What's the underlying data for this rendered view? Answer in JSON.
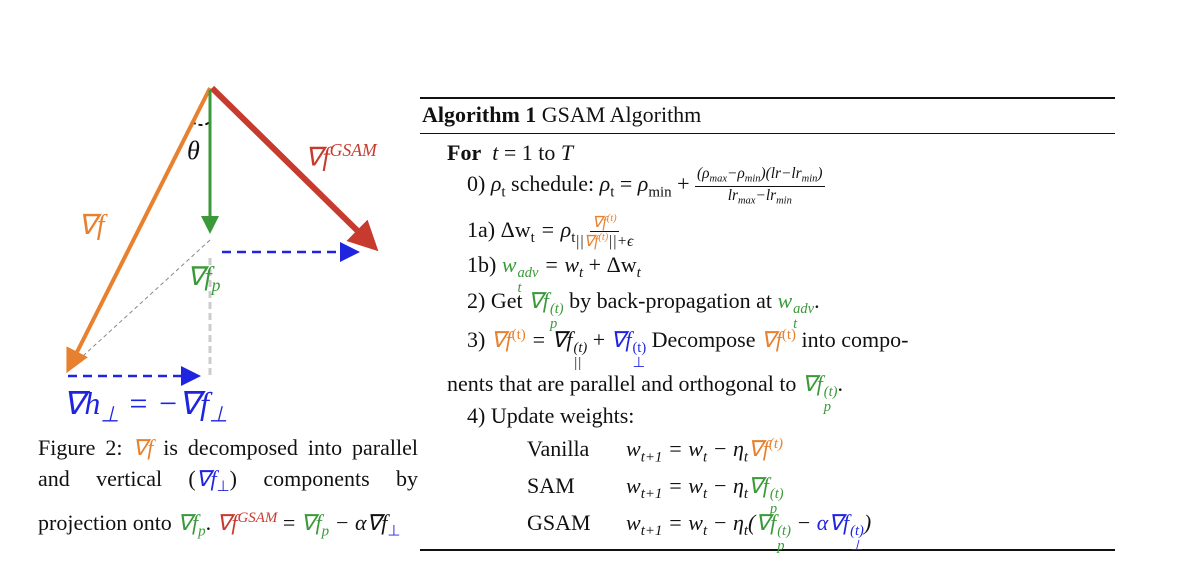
{
  "figure": {
    "grad_f": "∇f",
    "theta": "θ",
    "gsam_base": "∇f",
    "gsam_sup": "GSAM",
    "fp_base": "∇f",
    "fp_sub": "p",
    "h_perp": [
      "∇h",
      "⊥",
      " = −∇f",
      "⊥"
    ]
  },
  "caption": [
    "Figure 2: ",
    "∇f",
    " is decomposed into parallel and vertical (",
    "∇f",
    "⊥",
    ") components by projection onto ",
    "∇f",
    "p",
    ". ",
    "∇f",
    "GSAM",
    " = ",
    "∇f",
    "p",
    " − α∇f",
    "⊥"
  ],
  "algorithm": {
    "label": "Algorithm 1",
    "title": "GSAM Algorithm",
    "for": [
      "For",
      "t",
      " = 1 to ",
      "T"
    ],
    "step0": [
      "0) ",
      "ρ",
      "t",
      " schedule: ",
      "ρ",
      "t",
      " = ",
      "ρ",
      "min",
      " + "
    ],
    "step0_num": [
      "(ρ",
      "max",
      "−ρ",
      "min",
      ")(lr−lr",
      "min",
      ")"
    ],
    "step0_den": [
      "lr",
      "max",
      "−lr",
      "min"
    ],
    "step1a": [
      "1a) Δw",
      "t",
      " = ρ",
      "t"
    ],
    "step1a_num": [
      "∇f",
      "(t)"
    ],
    "step1a_den": [
      "||",
      "∇f",
      "(t)",
      "||+ϵ"
    ],
    "step1b": [
      "1b) ",
      "w",
      "t",
      "adv",
      " = w",
      "t",
      " + Δw",
      "t"
    ],
    "step2": [
      "2) Get ",
      "∇f",
      "p",
      "(t)",
      " by back-propagation at ",
      "w",
      "t",
      "adv",
      "."
    ],
    "step3": [
      "3) ",
      "∇f",
      "(t)",
      " = ∇f",
      "||",
      "(t)",
      " + ",
      "∇f",
      "⊥",
      "(t)",
      " Decompose ",
      "∇f",
      "(t)",
      " into compo-"
    ],
    "step3b": [
      "nents that are parallel and orthogonal to ",
      "∇f",
      "p",
      "(t)",
      "."
    ],
    "step4": "4) Update weights:",
    "vanilla": [
      "Vanilla",
      "w",
      "t+1",
      " = w",
      "t",
      " − η",
      "t",
      "∇f",
      "(t)"
    ],
    "sam": [
      "SAM",
      "w",
      "t+1",
      " = w",
      "t",
      " − η",
      "t",
      "∇f",
      "p",
      "(t)"
    ],
    "gsam": [
      "GSAM",
      "w",
      "t+1",
      " = w",
      "t",
      " − η",
      "t",
      "(",
      "∇f",
      "p",
      "(t)",
      " − ",
      "α∇f",
      "⊥",
      "(t)",
      ")"
    ]
  }
}
